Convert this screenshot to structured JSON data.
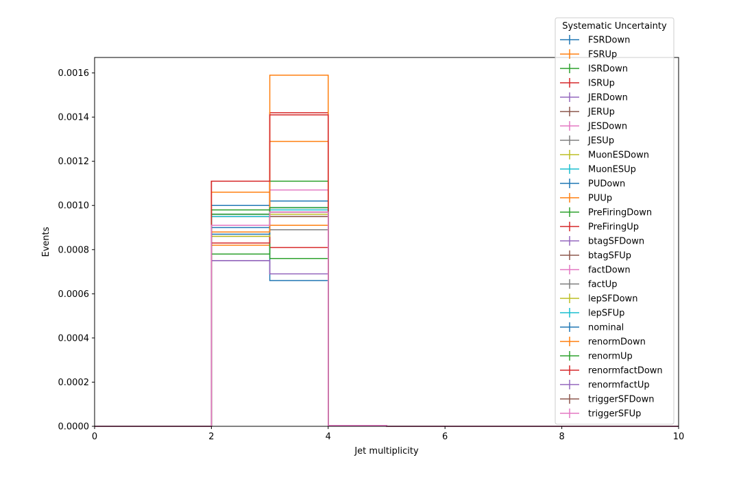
{
  "chart_data": {
    "type": "line",
    "drawstyle": "step-histogram",
    "xlabel": "Jet multiplicity",
    "ylabel": "Events",
    "xlim": [
      0,
      10
    ],
    "ylim": [
      0,
      0.00167
    ],
    "xticks": [
      "0",
      "2",
      "4",
      "6",
      "8",
      "10"
    ],
    "yticks": [
      "0.0000",
      "0.0002",
      "0.0004",
      "0.0006",
      "0.0008",
      "0.0010",
      "0.0012",
      "0.0014",
      "0.0016"
    ],
    "grid": false,
    "legend_title": "Systematic Uncertainty",
    "legend_position": "upper-right (outside)",
    "bin_edges": [
      0,
      1,
      2,
      3,
      4,
      5,
      6,
      7,
      8,
      9,
      10
    ],
    "series": [
      {
        "name": "FSRDown",
        "color": "#1f77b4",
        "values": [
          0,
          0,
          0.001,
          0.00066,
          4e-06,
          0,
          0,
          0,
          0,
          0
        ]
      },
      {
        "name": "FSRUp",
        "color": "#ff7f0e",
        "values": [
          0,
          0,
          0.00082,
          0.00129,
          4e-06,
          0,
          0,
          0,
          0,
          0
        ]
      },
      {
        "name": "ISRDown",
        "color": "#2ca02c",
        "values": [
          0,
          0,
          0.00078,
          0.00111,
          4e-06,
          0,
          0,
          0,
          0,
          0
        ]
      },
      {
        "name": "ISRUp",
        "color": "#d62728",
        "values": [
          0,
          0,
          0.00111,
          0.00081,
          4e-06,
          0,
          0,
          0,
          0,
          0
        ]
      },
      {
        "name": "JERDown",
        "color": "#9467bd",
        "values": [
          0,
          0,
          0.00075,
          0.00069,
          4e-06,
          0,
          0,
          0,
          0,
          0
        ]
      },
      {
        "name": "JERUp",
        "color": "#8c564b",
        "values": [
          0,
          0,
          0.00091,
          0.00097,
          4e-06,
          0,
          0,
          0,
          0,
          0
        ]
      },
      {
        "name": "JESDown",
        "color": "#e377c2",
        "values": [
          0,
          0,
          0.00095,
          0.00107,
          4e-06,
          0,
          0,
          0,
          0,
          0
        ]
      },
      {
        "name": "JESUp",
        "color": "#7f7f7f",
        "values": [
          0,
          0,
          0.00086,
          0.00089,
          4e-06,
          0,
          0,
          0,
          0,
          0
        ]
      },
      {
        "name": "MuonESDown",
        "color": "#bcbd22",
        "values": [
          0,
          0,
          0.00087,
          0.00097,
          4e-06,
          0,
          0,
          0,
          0,
          0
        ]
      },
      {
        "name": "MuonESUp",
        "color": "#17becf",
        "values": [
          0,
          0,
          0.00096,
          0.00099,
          4e-06,
          0,
          0,
          0,
          0,
          0
        ]
      },
      {
        "name": "PUDown",
        "color": "#1f77b4",
        "values": [
          0,
          0,
          0.0009,
          0.00102,
          4e-06,
          0,
          0,
          0,
          0,
          0
        ]
      },
      {
        "name": "PUUp",
        "color": "#ff7f0e",
        "values": [
          0,
          0,
          0.00106,
          0.00091,
          4e-06,
          0,
          0,
          0,
          0,
          0
        ]
      },
      {
        "name": "PreFiringDown",
        "color": "#2ca02c",
        "values": [
          0,
          0,
          0.00098,
          0.00076,
          4e-06,
          0,
          0,
          0,
          0,
          0
        ]
      },
      {
        "name": "PreFiringUp",
        "color": "#d62728",
        "values": [
          0,
          0,
          0.00083,
          0.00142,
          4e-06,
          0,
          0,
          0,
          0,
          0
        ]
      },
      {
        "name": "btagSFDown",
        "color": "#9467bd",
        "values": [
          0,
          0,
          0.00096,
          0.00098,
          4e-06,
          0,
          0,
          0,
          0,
          0
        ]
      },
      {
        "name": "btagSFUp",
        "color": "#8c564b",
        "values": [
          0,
          0,
          0.00095,
          0.00095,
          4e-06,
          0,
          0,
          0,
          0,
          0
        ]
      },
      {
        "name": "factDown",
        "color": "#e377c2",
        "values": [
          0,
          0,
          0.00091,
          0.00097,
          4e-06,
          0,
          0,
          0,
          0,
          0
        ]
      },
      {
        "name": "factUp",
        "color": "#7f7f7f",
        "values": [
          0,
          0,
          0.00087,
          0.00097,
          4e-06,
          0,
          0,
          0,
          0,
          0
        ]
      },
      {
        "name": "lepSFDown",
        "color": "#bcbd22",
        "values": [
          0,
          0,
          0.00086,
          0.00096,
          4e-06,
          0,
          0,
          0,
          0,
          0
        ]
      },
      {
        "name": "lepSFUp",
        "color": "#17becf",
        "values": [
          0,
          0,
          0.00095,
          0.00098,
          4e-06,
          0,
          0,
          0,
          0,
          0
        ]
      },
      {
        "name": "nominal",
        "color": "#1f77b4",
        "values": [
          0,
          0,
          0.00087,
          0.00099,
          4e-06,
          0,
          0,
          0,
          0,
          0
        ]
      },
      {
        "name": "renormDown",
        "color": "#ff7f0e",
        "values": [
          0,
          0,
          0.00088,
          0.00159,
          4e-06,
          0,
          0,
          0,
          0,
          0
        ]
      },
      {
        "name": "renormUp",
        "color": "#2ca02c",
        "values": [
          0,
          0,
          0.00096,
          0.00099,
          4e-06,
          0,
          0,
          0,
          0,
          0
        ]
      },
      {
        "name": "renormfactDown",
        "color": "#d62728",
        "values": [
          0,
          0,
          0.00111,
          0.00141,
          4e-06,
          0,
          0,
          0,
          0,
          0
        ]
      },
      {
        "name": "renormfactUp",
        "color": "#9467bd",
        "values": [
          0,
          0,
          0.00075,
          0.00069,
          4e-06,
          0,
          0,
          0,
          0,
          0
        ]
      },
      {
        "name": "triggerSFDown",
        "color": "#8c564b",
        "values": [
          0,
          0,
          0.00091,
          0.00095,
          4e-06,
          0,
          0,
          0,
          0,
          0
        ]
      },
      {
        "name": "triggerSFUp",
        "color": "#e377c2",
        "values": [
          0,
          0,
          0.00091,
          0.00097,
          4e-06,
          0,
          0,
          0,
          0,
          0
        ]
      }
    ]
  }
}
